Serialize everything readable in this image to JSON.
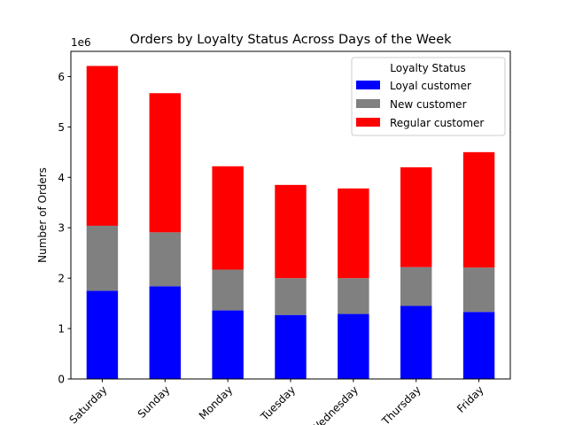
{
  "chart_data": {
    "type": "bar",
    "stacked": true,
    "title": "Orders by Loyalty Status Across Days of the Week",
    "xlabel": "",
    "ylabel": "Number of Orders",
    "y_offset_label": "1e6",
    "ylim": [
      0,
      6500000
    ],
    "yticks": [
      0,
      1000000,
      2000000,
      3000000,
      4000000,
      5000000,
      6000000
    ],
    "ytick_labels": [
      "0",
      "1",
      "2",
      "3",
      "4",
      "5",
      "6"
    ],
    "grid": false,
    "legend_title": "Loyalty Status",
    "legend_position": "top-right",
    "categories": [
      "Saturday",
      "Sunday",
      "Monday",
      "Tuesday",
      "Wednesday",
      "Thursday",
      "Friday"
    ],
    "series": [
      {
        "name": "Loyal customer",
        "color": "#0000ff",
        "values": [
          1750000,
          1840000,
          1360000,
          1270000,
          1290000,
          1450000,
          1330000
        ]
      },
      {
        "name": "New customer",
        "color": "#808080",
        "values": [
          1290000,
          1070000,
          810000,
          730000,
          710000,
          770000,
          880000
        ]
      },
      {
        "name": "Regular customer",
        "color": "#ff0000",
        "values": [
          3170000,
          2760000,
          2050000,
          1850000,
          1780000,
          1980000,
          2290000
        ]
      }
    ]
  }
}
